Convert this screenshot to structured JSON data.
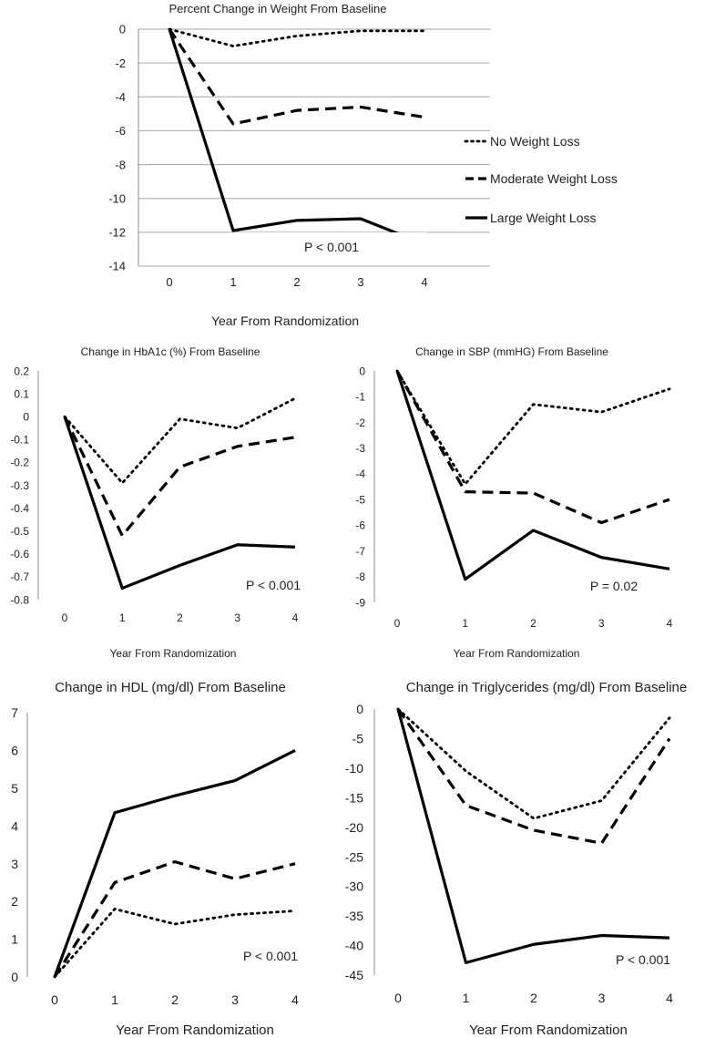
{
  "legend": [
    {
      "series": "No Weight Loss",
      "dash": "dotted"
    },
    {
      "series": "Moderate Weight Loss",
      "dash": "dashed"
    },
    {
      "series": "Large Weight Loss",
      "dash": "solid"
    }
  ],
  "chart_data": [
    {
      "type": "line",
      "title": "Percent Change in Weight  From Baseline",
      "xlabel": "Year From Randomization",
      "ylabel": "",
      "x": [
        0,
        1,
        2,
        3,
        4
      ],
      "ylim": [
        -14,
        0
      ],
      "yticks": [
        0,
        -2,
        -4,
        -6,
        -8,
        -10,
        -12,
        -14
      ],
      "ytick_labels": [
        "0",
        "-2",
        "-4",
        "-6",
        "-8",
        "-10",
        "-12",
        "-14"
      ],
      "grid": true,
      "annotation": "P < 0.001",
      "series": [
        {
          "name": "No Weight Loss",
          "dash": "dotted",
          "values": [
            0,
            -1.0,
            -0.4,
            -0.1,
            -0.1
          ]
        },
        {
          "name": "Moderate Weight Loss",
          "dash": "dashed",
          "values": [
            0,
            -5.6,
            -4.8,
            -4.6,
            -5.2
          ]
        },
        {
          "name": "Large Weight Loss",
          "dash": "solid",
          "values": [
            0,
            -11.9,
            -11.3,
            -11.2,
            -12.7
          ]
        }
      ]
    },
    {
      "type": "line",
      "title": "Change in HbA1c (%)  From Baseline",
      "xlabel": "Year From Randomization",
      "ylabel": "",
      "x": [
        0,
        1,
        2,
        3,
        4
      ],
      "ylim": [
        -0.8,
        0.2
      ],
      "yticks": [
        0.2,
        0.1,
        0,
        -0.1,
        -0.2,
        -0.3,
        -0.4,
        -0.5,
        -0.6,
        -0.7,
        -0.8
      ],
      "ytick_labels": [
        "0.2",
        "0.1",
        "0",
        "-0.1",
        "-0.2",
        "-0.3",
        "-0.4",
        "-0.5",
        "-0.6",
        "-0.7",
        "-0.8"
      ],
      "grid": false,
      "annotation": "P < 0.001",
      "series": [
        {
          "name": "No Weight Loss",
          "dash": "dotted",
          "values": [
            0,
            -0.29,
            -0.01,
            -0.05,
            0.08
          ]
        },
        {
          "name": "Moderate Weight Loss",
          "dash": "dashed",
          "values": [
            0,
            -0.52,
            -0.22,
            -0.13,
            -0.09
          ]
        },
        {
          "name": "Large Weight Loss",
          "dash": "solid",
          "values": [
            0,
            -0.75,
            -0.65,
            -0.56,
            -0.57
          ]
        }
      ]
    },
    {
      "type": "line",
      "title": "Change in SBP (mmHG)  From Baseline",
      "xlabel": "Year From Randomization",
      "ylabel": "",
      "x": [
        0,
        1,
        2,
        3,
        4
      ],
      "ylim": [
        -9,
        0
      ],
      "yticks": [
        0,
        -1,
        -2,
        -3,
        -4,
        -5,
        -6,
        -7,
        -8,
        -9
      ],
      "ytick_labels": [
        "0",
        "-1",
        "-2",
        "-3",
        "-4",
        "-5",
        "-6",
        "-7",
        "-8",
        "-9"
      ],
      "grid": false,
      "annotation": "P = 0.02",
      "series": [
        {
          "name": "No Weight Loss",
          "dash": "dotted",
          "values": [
            0,
            -4.4,
            -1.3,
            -1.6,
            -0.7
          ]
        },
        {
          "name": "Moderate Weight Loss",
          "dash": "dashed",
          "values": [
            0,
            -4.7,
            -4.75,
            -5.9,
            -5.0
          ]
        },
        {
          "name": "Large Weight Loss",
          "dash": "solid",
          "values": [
            0,
            -8.1,
            -6.2,
            -7.25,
            -7.7
          ]
        }
      ]
    },
    {
      "type": "line",
      "title": "Change in HDL (mg/dl) From Baseline",
      "xlabel": "Year From Randomization",
      "ylabel": "",
      "x": [
        0,
        1,
        2,
        3,
        4
      ],
      "ylim": [
        0,
        7
      ],
      "yticks": [
        7,
        6,
        5,
        4,
        3,
        2,
        1,
        0
      ],
      "ytick_labels": [
        "7",
        "6",
        "5",
        "4",
        "3",
        "2",
        "1",
        "0"
      ],
      "grid": false,
      "annotation": "P < 0.001",
      "series": [
        {
          "name": "No Weight Loss",
          "dash": "dotted",
          "values": [
            0,
            1.8,
            1.4,
            1.65,
            1.75
          ]
        },
        {
          "name": "Moderate Weight Loss",
          "dash": "dashed",
          "values": [
            0,
            2.5,
            3.05,
            2.6,
            3.0
          ]
        },
        {
          "name": "Large Weight Loss",
          "dash": "solid",
          "values": [
            0,
            4.35,
            4.8,
            5.2,
            6.0
          ]
        }
      ]
    },
    {
      "type": "line",
      "title": "Change in Triglycerides (mg/dl)  From Baseline",
      "xlabel": "Year From Randomization",
      "ylabel": "",
      "x": [
        0,
        1,
        2,
        3,
        4
      ],
      "ylim": [
        -45,
        0
      ],
      "yticks": [
        0,
        -5,
        -10,
        -15,
        -20,
        -25,
        -30,
        -35,
        -40,
        -45
      ],
      "ytick_labels": [
        "0",
        "-5",
        "-10",
        "-15",
        "-20",
        "-25",
        "-30",
        "-35",
        "-40",
        "-45"
      ],
      "grid": false,
      "annotation": "P < 0.001",
      "series": [
        {
          "name": "No Weight Loss",
          "dash": "dotted",
          "values": [
            0,
            -10.5,
            -18.5,
            -15.5,
            -1.5
          ]
        },
        {
          "name": "Moderate Weight Loss",
          "dash": "dashed",
          "values": [
            0,
            -16.3,
            -20.5,
            -22.7,
            -5.0
          ]
        },
        {
          "name": "Large Weight Loss",
          "dash": "solid",
          "values": [
            0,
            -42.9,
            -39.8,
            -38.3,
            -38.7
          ]
        }
      ]
    }
  ]
}
